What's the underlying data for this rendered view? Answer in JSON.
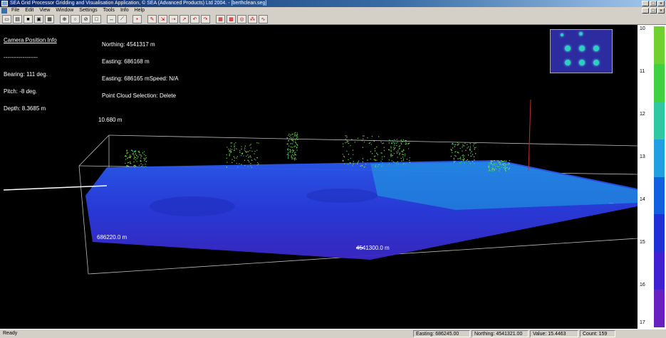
{
  "window": {
    "title": "SEA Grid Processor Gridding and Visualisation Application, © SEA (Advanced Products) Ltd 2004. - [berthclean.seg]",
    "controls": [
      "_",
      "□",
      "×"
    ]
  },
  "menubar": {
    "items": [
      "File",
      "Edit",
      "View",
      "Window",
      "Settings",
      "Tools",
      "Info",
      "Help"
    ],
    "mdi_controls": [
      "_",
      "□",
      "×"
    ]
  },
  "camera_info": {
    "heading": "Camera Position Info",
    "separator": "------------------",
    "bearing": "Bearing: 111 deg.",
    "pitch": "Pitch: -8 deg.",
    "depth": "Depth: 8.3685 m"
  },
  "position_info": {
    "northing": "Northing: 4541317 m",
    "easting": "Easting: 686168 m",
    "easting_speed": "Easting: 686165 mSpeed: N/A",
    "point_cloud": "Point Cloud Selection: Delete"
  },
  "scene_labels": {
    "height": "10.680 m",
    "easting_axis": "686220.0 m",
    "northing_axis": "4541300.0 m",
    "right_axis": "..."
  },
  "legend": {
    "ticks": [
      "10",
      "11",
      "12",
      "13",
      "14",
      "15",
      "16",
      "17"
    ],
    "colors": [
      "#70d030",
      "#40d040",
      "#30c8a0",
      "#20a0e0",
      "#1060e0",
      "#2030d8",
      "#4020d0",
      "#6820c0"
    ]
  },
  "status": {
    "ready": "Ready",
    "easting": "Easting: 686245.00",
    "northing": "Northing: 4541321.00",
    "value": "Value: 15.4463",
    "count": "Count: 159"
  }
}
